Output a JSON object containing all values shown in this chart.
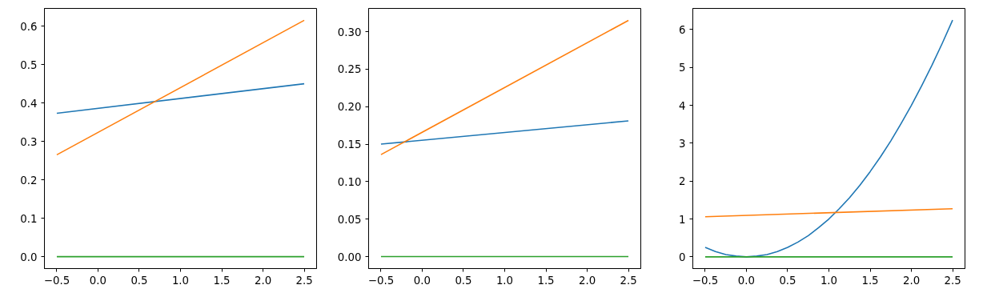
{
  "chart_data": [
    {
      "type": "line",
      "xlim": [
        -0.65,
        2.65
      ],
      "xticks": [
        -0.5,
        {
          "value": 0,
          "label": "0.0"
        },
        0.5,
        {
          "value": 1,
          "label": "1.0"
        },
        1.5,
        {
          "value": 2,
          "label": "2.0"
        },
        2.5
      ],
      "ylim": [
        -0.031,
        0.646
      ],
      "yticks": [
        {
          "value": 0,
          "label": "0.0"
        },
        0.1,
        0.2,
        0.3,
        0.4,
        0.5,
        0.6
      ],
      "grid": false,
      "series": [
        {
          "color": "#1f77b4",
          "x": [
            -0.5,
            2.5
          ],
          "values": [
            0.373,
            0.45
          ]
        },
        {
          "color": "#ff7f0e",
          "x": [
            -0.5,
            2.5
          ],
          "values": [
            0.265,
            0.615
          ]
        },
        {
          "color": "#2ca02c",
          "x": [
            -0.5,
            2.5
          ],
          "values": [
            0,
            0
          ]
        }
      ]
    },
    {
      "type": "line",
      "xlim": [
        -0.65,
        2.65
      ],
      "xticks": [
        -0.5,
        {
          "value": 0,
          "label": "0.0"
        },
        0.5,
        {
          "value": 1,
          "label": "1.0"
        },
        1.5,
        {
          "value": 2,
          "label": "2.0"
        },
        2.5
      ],
      "ylim": [
        -0.016,
        0.331
      ],
      "yticks": [
        {
          "value": 0,
          "label": "0.00"
        },
        0.05,
        {
          "value": 0.1,
          "label": "0.10"
        },
        0.15,
        {
          "value": 0.2,
          "label": "0.20"
        },
        0.25,
        {
          "value": 0.3,
          "label": "0.30"
        }
      ],
      "grid": false,
      "series": [
        {
          "color": "#1f77b4",
          "x": [
            -0.5,
            2.5
          ],
          "values": [
            0.15,
            0.181
          ]
        },
        {
          "color": "#ff7f0e",
          "x": [
            -0.5,
            2.5
          ],
          "values": [
            0.136,
            0.315
          ]
        },
        {
          "color": "#2ca02c",
          "x": [
            -0.5,
            2.5
          ],
          "values": [
            0,
            0
          ]
        }
      ]
    },
    {
      "type": "line",
      "xlim": [
        -0.65,
        2.65
      ],
      "xticks": [
        -0.5,
        {
          "value": 0,
          "label": "0.0"
        },
        0.5,
        {
          "value": 1,
          "label": "1.0"
        },
        1.5,
        {
          "value": 2,
          "label": "2.0"
        },
        2.5
      ],
      "ylim": [
        -0.31,
        6.56
      ],
      "yticks": [
        0,
        1,
        2,
        3,
        4,
        5,
        6
      ],
      "grid": false,
      "series": [
        {
          "color": "#1f77b4",
          "x": [
            -0.5,
            -0.375,
            -0.25,
            -0.125,
            0,
            0.125,
            0.25,
            0.375,
            0.5,
            0.625,
            0.75,
            0.875,
            1,
            1.125,
            1.25,
            1.375,
            1.5,
            1.625,
            1.75,
            1.875,
            2,
            2.125,
            2.25,
            2.375,
            2.5
          ],
          "values": [
            0.25,
            0.14,
            0.06,
            0.02,
            0,
            0.02,
            0.06,
            0.14,
            0.25,
            0.39,
            0.56,
            0.77,
            1,
            1.27,
            1.56,
            1.89,
            2.25,
            2.64,
            3.06,
            3.52,
            4,
            4.52,
            5.06,
            5.64,
            6.25
          ]
        },
        {
          "color": "#ff7f0e",
          "x": [
            -0.5,
            2.5
          ],
          "values": [
            1.06,
            1.27
          ]
        },
        {
          "color": "#2ca02c",
          "x": [
            -0.5,
            2.5
          ],
          "values": [
            0,
            0
          ]
        }
      ]
    }
  ]
}
